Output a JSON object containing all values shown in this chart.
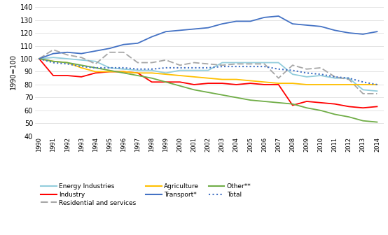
{
  "years": [
    1990,
    1991,
    1992,
    1993,
    1994,
    1995,
    1996,
    1997,
    1998,
    1999,
    2000,
    2001,
    2002,
    2003,
    2004,
    2005,
    2006,
    2007,
    2008,
    2009,
    2010,
    2011,
    2012,
    2013,
    2014
  ],
  "energy_industries": [
    100,
    101,
    100,
    99,
    98,
    93,
    92,
    91,
    91,
    89,
    91,
    91,
    91,
    97,
    97,
    97,
    97,
    97,
    88,
    86,
    87,
    85,
    85,
    76,
    75
  ],
  "industry": [
    100,
    87,
    87,
    86,
    89,
    90,
    90,
    89,
    82,
    82,
    82,
    80,
    81,
    81,
    80,
    81,
    80,
    80,
    64,
    67,
    66,
    65,
    63,
    62,
    63
  ],
  "residential_services": [
    100,
    107,
    103,
    101,
    96,
    105,
    105,
    97,
    97,
    99,
    95,
    97,
    96,
    95,
    96,
    96,
    96,
    85,
    95,
    92,
    93,
    86,
    84,
    73,
    73
  ],
  "agriculture": [
    100,
    98,
    97,
    93,
    90,
    90,
    90,
    89,
    89,
    88,
    87,
    86,
    85,
    84,
    84,
    83,
    82,
    81,
    81,
    80,
    80,
    80,
    80,
    80,
    80
  ],
  "transport": [
    100,
    104,
    105,
    104,
    106,
    108,
    111,
    112,
    117,
    121,
    122,
    123,
    124,
    127,
    129,
    129,
    132,
    133,
    127,
    126,
    125,
    122,
    120,
    119,
    121
  ],
  "other": [
    100,
    98,
    97,
    95,
    93,
    91,
    89,
    87,
    85,
    82,
    79,
    76,
    74,
    72,
    70,
    68,
    67,
    66,
    65,
    62,
    60,
    57,
    55,
    52,
    51
  ],
  "total": [
    100,
    97,
    96,
    94,
    93,
    93,
    93,
    92,
    92,
    93,
    93,
    93,
    93,
    94,
    94,
    94,
    94,
    92,
    91,
    89,
    88,
    86,
    85,
    82,
    80
  ],
  "colors": {
    "energy_industries": "#92CDDC",
    "industry": "#FF0000",
    "residential_services": "#A6A6A6",
    "agriculture": "#FFC000",
    "transport": "#4472C4",
    "other": "#70AD47",
    "total": "#4472C4"
  },
  "ylabel": "1990=100",
  "ylim": [
    40,
    140
  ],
  "yticks": [
    40,
    50,
    60,
    70,
    80,
    90,
    100,
    110,
    120,
    130,
    140
  ],
  "grid_color": "#D9D9D9",
  "background_color": "#FFFFFF"
}
